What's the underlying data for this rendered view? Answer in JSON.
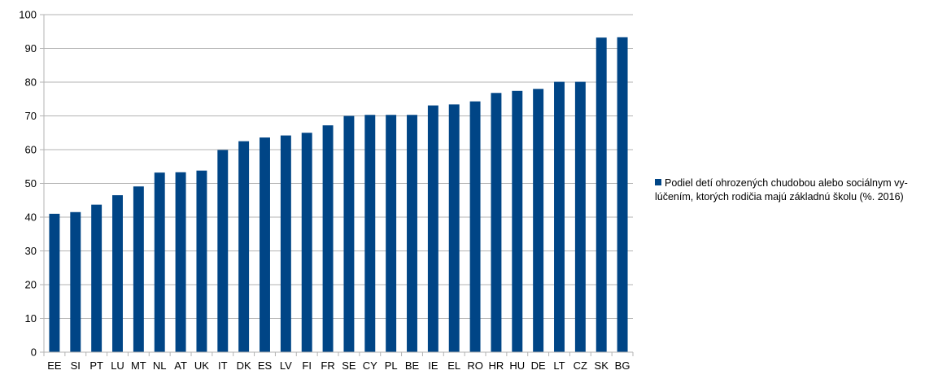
{
  "chart_data": {
    "type": "bar",
    "title": "",
    "xlabel": "",
    "ylabel": "",
    "ylim": [
      0,
      100
    ],
    "yticks": [
      0,
      10,
      20,
      30,
      40,
      50,
      60,
      70,
      80,
      90,
      100
    ],
    "grid": true,
    "legend_position": "right",
    "categories": [
      "EE",
      "SI",
      "PT",
      "LU",
      "MT",
      "NL",
      "AT",
      "UK",
      "IT",
      "DK",
      "ES",
      "LV",
      "FI",
      "FR",
      "SE",
      "CY",
      "PL",
      "BE",
      "IE",
      "EL",
      "RO",
      "HR",
      "HU",
      "DE",
      "LT",
      "CZ",
      "SK",
      "BG"
    ],
    "series": [
      {
        "name": "Podiel detí ohrozených chudobou alebo sociálnym vylúčením, ktorých rodičia majú základnú školu (%. 2016)",
        "color": "#004586",
        "values": [
          41.0,
          41.5,
          43.7,
          46.5,
          49.1,
          53.2,
          53.3,
          53.8,
          59.9,
          62.5,
          63.6,
          64.2,
          65.0,
          67.2,
          70.0,
          70.3,
          70.3,
          70.3,
          73.1,
          73.4,
          74.3,
          76.8,
          77.4,
          78.0,
          80.1,
          80.1,
          93.2,
          93.3
        ]
      }
    ]
  },
  "legend": {
    "line1": "Podiel detí ohrozených chudobou alebo sociálnym vy-",
    "line2": "lúčením, ktorých rodičia majú základnú školu (%. 2016)"
  }
}
